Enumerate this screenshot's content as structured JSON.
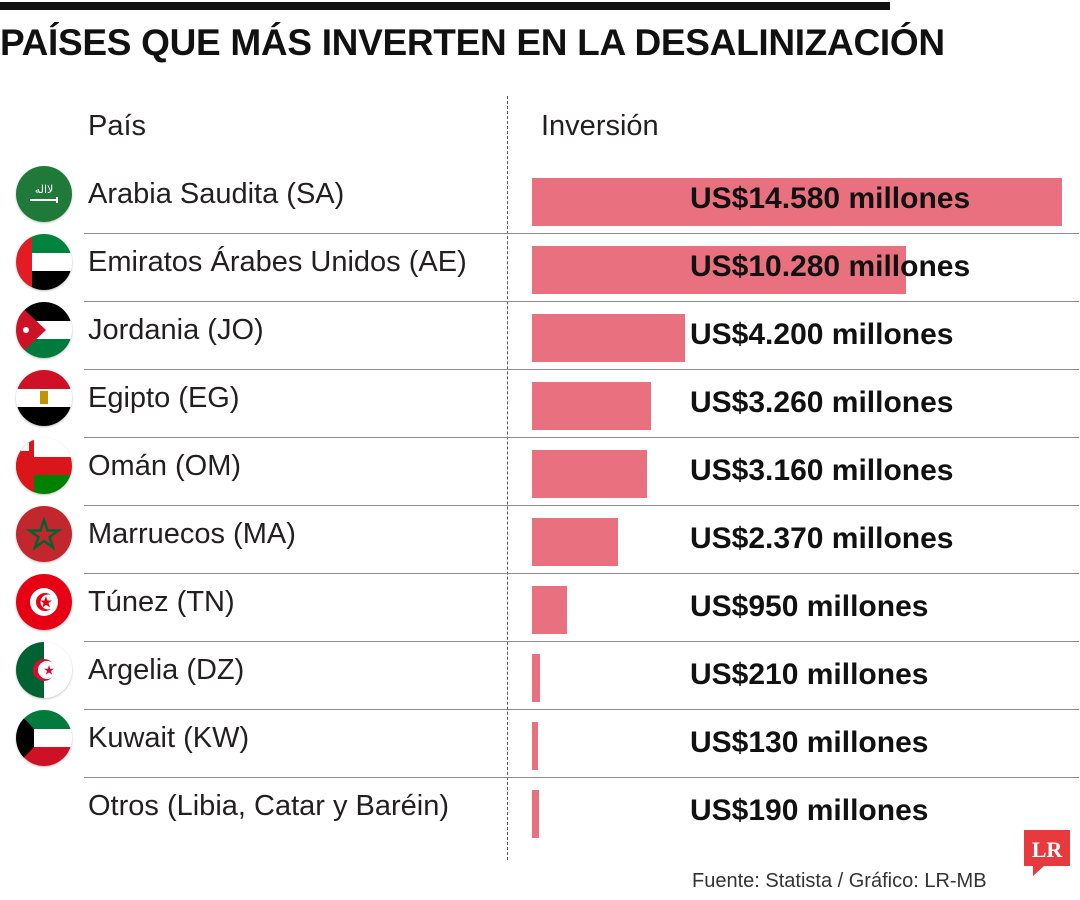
{
  "title": "PAÍSES QUE MÁS INVERTEN EN LA DESALINIZACIÓN",
  "header": {
    "country": "País",
    "value": "Inversión"
  },
  "source": "Fuente:  Statista / Gráfico: LR-MB",
  "logo": {
    "text": "LR",
    "color": "#e63a3f"
  },
  "colors": {
    "bar": "#e9717f",
    "rule": "#8c8c8c"
  },
  "chart_data": {
    "type": "bar",
    "orientation": "horizontal",
    "title": "PAÍSES QUE MÁS INVERTEN EN LA DESALINIZACIÓN",
    "xlabel": "Inversión",
    "ylabel": "País",
    "categories": [
      "Arabia Saudita (SA)",
      "Emiratos Árabes Unidos (AE)",
      "Jordania (JO)",
      "Egipto (EG)",
      "Omán (OM)",
      "Marruecos (MA)",
      "Túnez (TN)",
      "Argelia (DZ)",
      "Kuwait (KW)",
      "Otros (Libia, Catar y Baréin)"
    ],
    "values": [
      14580,
      10280,
      4200,
      3260,
      3160,
      2370,
      950,
      210,
      130,
      190
    ],
    "value_labels": [
      "US$14.580 millones",
      "US$10.280 millones",
      "US$4.200 millones",
      "US$3.260 millones",
      "US$3.160 millones",
      "US$2.370 millones",
      "US$950 millones",
      "US$210 millones",
      "US$130 millones",
      "US$190 millones"
    ],
    "flags": [
      "sa-flag-icon",
      "ae-flag-icon",
      "jo-flag-icon",
      "eg-flag-icon",
      "om-flag-icon",
      "ma-flag-icon",
      "tn-flag-icon",
      "dz-flag-icon",
      "kw-flag-icon",
      ""
    ],
    "xlim": [
      0,
      14580
    ],
    "grid": false
  }
}
